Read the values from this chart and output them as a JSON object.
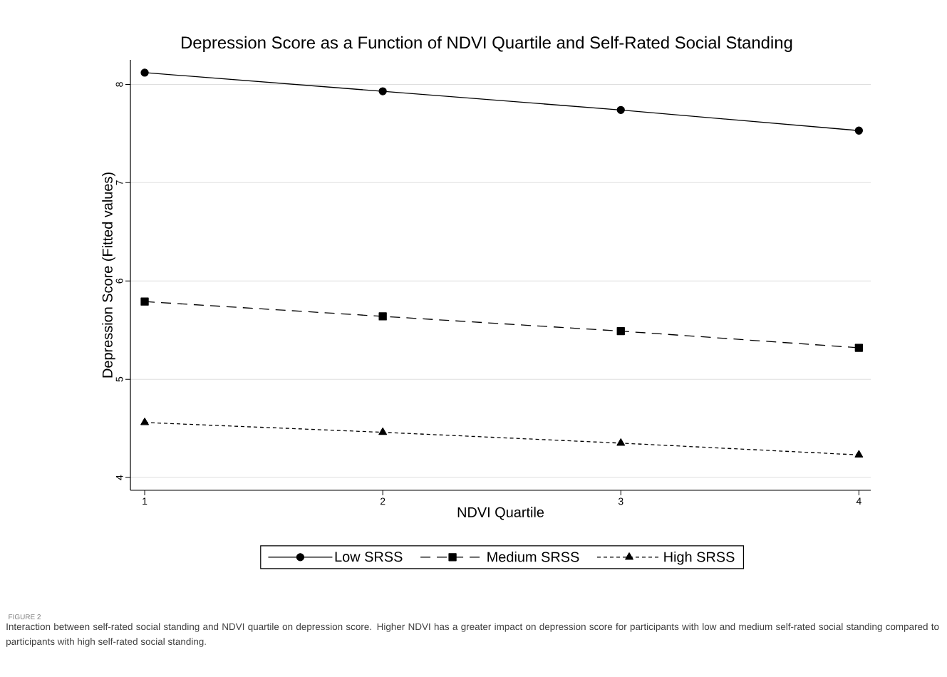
{
  "chart_data": {
    "type": "line",
    "title": "Depression Score as a Function of NDVI Quartile and Self-Rated Social Standing",
    "xlabel": "NDVI Quartile",
    "ylabel": "Depression Score (Fitted values)",
    "x": [
      1,
      2,
      3,
      4
    ],
    "series": [
      {
        "name": "Low SRSS",
        "color": "#000000",
        "marker": "circle",
        "line_style": "solid",
        "values": [
          8.12,
          7.93,
          7.74,
          7.53
        ]
      },
      {
        "name": "Medium SRSS",
        "color": "#000000",
        "marker": "square",
        "line_style": "dashed",
        "values": [
          5.79,
          5.64,
          5.49,
          5.32
        ]
      },
      {
        "name": "High SRSS",
        "color": "#000000",
        "marker": "triangle",
        "line_style": "dotted",
        "values": [
          4.56,
          4.46,
          4.35,
          4.23
        ]
      }
    ],
    "xlim": [
      0.94,
      4.05
    ],
    "ylim": [
      3.87,
      8.25
    ],
    "xticks": [
      1,
      2,
      3,
      4
    ],
    "yticks": [
      4,
      5,
      6,
      7,
      8
    ],
    "grid": "y",
    "legend": "bottom",
    "annotations": [
      "FIGURE 2",
      "Interaction between self-rated social standing and NDVI quartile on depression score. Higher NDVI has a greater impact on depression score for participants with low and medium self-rated social standing compared to participants with high self-rated social standing."
    ]
  }
}
